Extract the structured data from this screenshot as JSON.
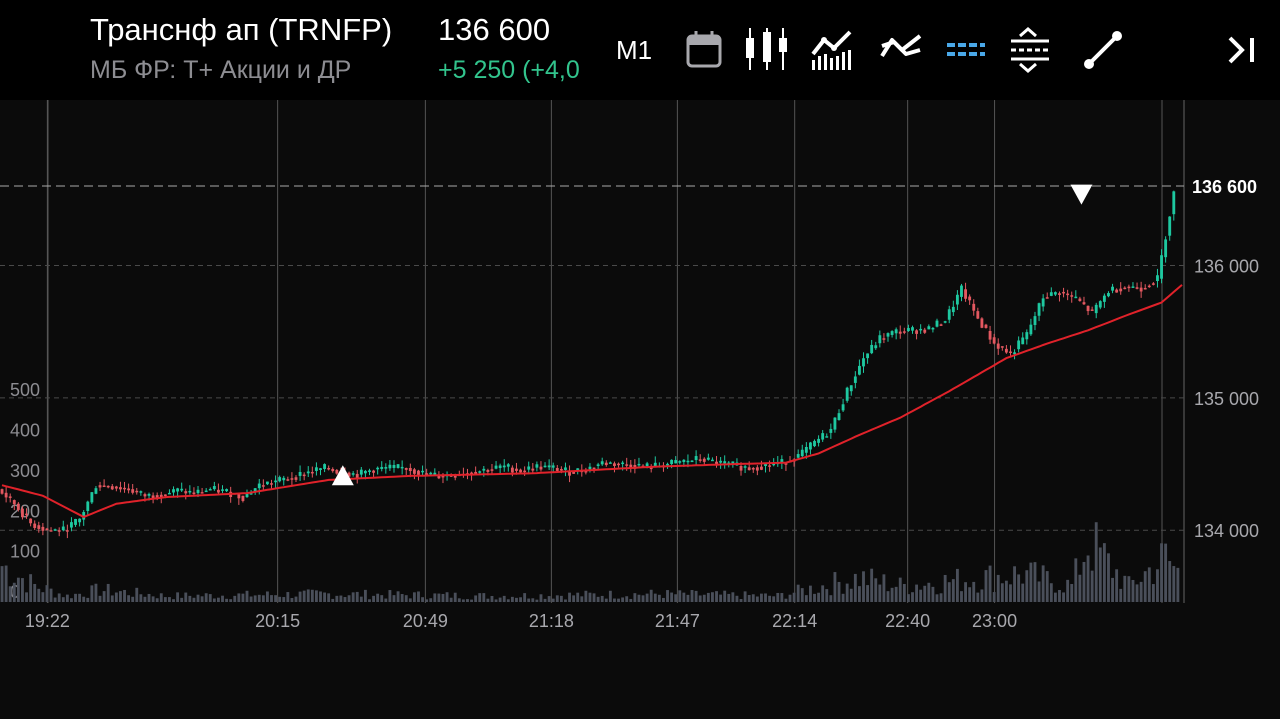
{
  "header": {
    "title": "Транснф ап (TRNFP)",
    "subtitle": "МБ ФР: Т+ Акции и ДР",
    "price": "136 600",
    "change": "+5 250 (+4,0",
    "timeframe": "M1"
  },
  "toolbar": {
    "icons": [
      "calendar-icon",
      "candles-icon",
      "indicators-icon",
      "compare-icon",
      "levels-icon",
      "fibonacci-icon",
      "trendline-icon",
      "go-to-latest-icon"
    ]
  },
  "colors": {
    "up": "#1ec8a0",
    "down": "#e35860",
    "ma": "#e0222a",
    "change": "#32c48d",
    "levels_icon": "#4aa8e8"
  },
  "chart_data": {
    "type": "candlestick",
    "title": "",
    "x_ticks": [
      "19:22",
      "20:15",
      "20:49",
      "21:18",
      "21:47",
      "22:14",
      "22:40",
      "23:00"
    ],
    "price_axis_ticks": [
      "136 000",
      "135 000",
      "134 000"
    ],
    "price_ylim": [
      133450,
      137250
    ],
    "last_price_label": "136 600",
    "last_price": 136600,
    "volume_axis_ticks": [
      "500",
      "400",
      "300",
      "200",
      "100",
      "0"
    ],
    "volume_ylim": [
      0,
      550
    ],
    "grid": true,
    "markers": [
      {
        "type": "buy",
        "at_time": "20:30",
        "price": 134400
      },
      {
        "type": "sell",
        "at_time": "23:20",
        "price": 136550
      }
    ],
    "price_path": [
      [
        0,
        134310
      ],
      [
        4,
        134200
      ],
      [
        8,
        134050
      ],
      [
        12,
        134000
      ],
      [
        16,
        134000
      ],
      [
        20,
        134080
      ],
      [
        24,
        134340
      ],
      [
        28,
        134330
      ],
      [
        32,
        134310
      ],
      [
        36,
        134260
      ],
      [
        40,
        134270
      ],
      [
        44,
        134300
      ],
      [
        48,
        134280
      ],
      [
        52,
        134310
      ],
      [
        56,
        134290
      ],
      [
        60,
        134250
      ],
      [
        64,
        134340
      ],
      [
        68,
        134370
      ],
      [
        72,
        134400
      ],
      [
        76,
        134440
      ],
      [
        80,
        134470
      ],
      [
        84,
        134440
      ],
      [
        88,
        134420
      ],
      [
        92,
        134460
      ],
      [
        96,
        134470
      ],
      [
        100,
        134470
      ],
      [
        104,
        134430
      ],
      [
        108,
        134410
      ],
      [
        112,
        134420
      ],
      [
        116,
        134440
      ],
      [
        120,
        134460
      ],
      [
        124,
        134480
      ],
      [
        128,
        134450
      ],
      [
        132,
        134480
      ],
      [
        136,
        134470
      ],
      [
        140,
        134440
      ],
      [
        144,
        134460
      ],
      [
        148,
        134510
      ],
      [
        152,
        134500
      ],
      [
        156,
        134490
      ],
      [
        160,
        134480
      ],
      [
        164,
        134500
      ],
      [
        168,
        134520
      ],
      [
        172,
        134540
      ],
      [
        176,
        134510
      ],
      [
        180,
        134490
      ],
      [
        184,
        134470
      ],
      [
        188,
        134490
      ],
      [
        192,
        134510
      ],
      [
        196,
        134560
      ],
      [
        200,
        134660
      ],
      [
        204,
        134760
      ],
      [
        208,
        135050
      ],
      [
        212,
        135300
      ],
      [
        216,
        135450
      ],
      [
        220,
        135500
      ],
      [
        224,
        135510
      ],
      [
        228,
        135520
      ],
      [
        232,
        135590
      ],
      [
        236,
        135820
      ],
      [
        240,
        135600
      ],
      [
        244,
        135410
      ],
      [
        248,
        135330
      ],
      [
        252,
        135480
      ],
      [
        256,
        135760
      ],
      [
        260,
        135800
      ],
      [
        264,
        135750
      ],
      [
        268,
        135640
      ],
      [
        272,
        135810
      ],
      [
        276,
        135840
      ],
      [
        280,
        135830
      ],
      [
        284,
        135900
      ],
      [
        288,
        136550
      ]
    ],
    "ma_path": [
      [
        0,
        134340
      ],
      [
        10,
        134260
      ],
      [
        20,
        134100
      ],
      [
        28,
        134200
      ],
      [
        40,
        134250
      ],
      [
        60,
        134280
      ],
      [
        70,
        134330
      ],
      [
        80,
        134380
      ],
      [
        100,
        134410
      ],
      [
        130,
        134430
      ],
      [
        160,
        134480
      ],
      [
        180,
        134500
      ],
      [
        192,
        134510
      ],
      [
        200,
        134580
      ],
      [
        210,
        134720
      ],
      [
        220,
        134850
      ],
      [
        232,
        135050
      ],
      [
        246,
        135300
      ],
      [
        256,
        135410
      ],
      [
        266,
        135510
      ],
      [
        276,
        135630
      ],
      [
        284,
        135720
      ],
      [
        290,
        135880
      ]
    ],
    "volume_profile": [
      [
        0,
        90
      ],
      [
        8,
        40
      ],
      [
        16,
        15
      ],
      [
        24,
        30
      ],
      [
        40,
        15
      ],
      [
        80,
        20
      ],
      [
        120,
        15
      ],
      [
        160,
        20
      ],
      [
        190,
        15
      ],
      [
        210,
        60
      ],
      [
        220,
        40
      ],
      [
        250,
        70
      ],
      [
        262,
        40
      ],
      [
        266,
        150
      ],
      [
        276,
        40
      ],
      [
        285,
        110
      ],
      [
        290,
        50
      ]
    ]
  }
}
